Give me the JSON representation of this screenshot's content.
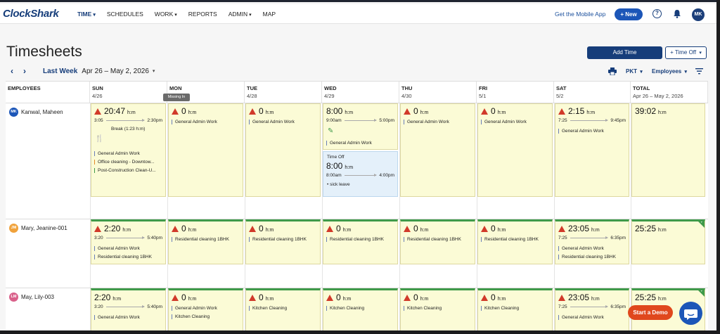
{
  "app": {
    "logo": "ClockShark"
  },
  "nav": [
    {
      "label": "TIME",
      "caret": true,
      "active": true
    },
    {
      "label": "SCHEDULES",
      "caret": false
    },
    {
      "label": "WORK",
      "caret": true
    },
    {
      "label": "REPORTS",
      "caret": false
    },
    {
      "label": "ADMIN",
      "caret": true
    },
    {
      "label": "MAP",
      "caret": false
    }
  ],
  "topbar": {
    "mobile_link": "Get the Mobile App",
    "new_label": "+ New",
    "help": "?",
    "user_initials": "MK"
  },
  "page": {
    "title": "Timesheets",
    "add_time": "Add Time",
    "time_off": "+ Time Off"
  },
  "week": {
    "label": "Last Week",
    "range": "Apr 26 – May 2, 2026",
    "tz": "PKT",
    "employees_filter": "Employees"
  },
  "columns": [
    {
      "day": "EMPLOYEES",
      "date": ""
    },
    {
      "day": "SUN",
      "date": "4/26"
    },
    {
      "day": "MON",
      "date": "4/27"
    },
    {
      "day": "TUE",
      "date": "4/28"
    },
    {
      "day": "WED",
      "date": "4/29"
    },
    {
      "day": "THU",
      "date": "4/30"
    },
    {
      "day": "FRI",
      "date": "5/1"
    },
    {
      "day": "SAT",
      "date": "5/2"
    },
    {
      "day": "TOTAL",
      "date": "Apr 26 – May 2, 2026"
    }
  ],
  "tooltip": "Missing In",
  "unit": "h:m",
  "employees": [
    {
      "initials": "MK",
      "name": "Kanwal, Maheen",
      "color": "#1c56b8",
      "approved": false,
      "days": [
        {
          "hours": "20:47",
          "warn": true,
          "start": "3:05",
          "end": "2:30pm",
          "break": "Break (1:23 h:m)",
          "tags": [
            "General Admin Work",
            "Office cleaning - Downtow...",
            "Post-Construction Clean-U..."
          ]
        },
        {
          "hours": "0",
          "warn": true,
          "tags": [
            "General Admin Work"
          ]
        },
        {
          "hours": "0",
          "warn": true,
          "tags": [
            "General Admin Work"
          ]
        },
        {
          "hours": "8:00",
          "warn": false,
          "start": "9:00am",
          "end": "5:00pm",
          "tags": [
            "General Admin Work"
          ],
          "timeoff": {
            "label": "Time Off",
            "hours": "8:00",
            "start": "8:00am",
            "end": "4:00pm",
            "note": "• sick leave"
          }
        },
        {
          "hours": "0",
          "warn": true,
          "tags": [
            "General Admin Work"
          ]
        },
        {
          "hours": "0",
          "warn": true,
          "tags": [
            "General Admin Work"
          ]
        },
        {
          "hours": "2:15",
          "warn": true,
          "start": "7:25",
          "end": "9:45pm",
          "tags": [
            "General Admin Work"
          ]
        }
      ],
      "total": "39:02"
    },
    {
      "initials": "JM",
      "name": "Mary, Jeanine-001",
      "color": "#f0a23b",
      "approved": true,
      "days": [
        {
          "hours": "2:20",
          "warn": true,
          "start": "3:20",
          "end": "5:40pm",
          "tags": [
            "General Admin Work",
            "Residential cleaning 1BHK"
          ]
        },
        {
          "hours": "0",
          "warn": true,
          "tags": [
            "Residential cleaning 1BHK"
          ]
        },
        {
          "hours": "0",
          "warn": true,
          "tags": [
            "Residential cleaning 1BHK"
          ]
        },
        {
          "hours": "0",
          "warn": true,
          "tags": [
            "Residential cleaning 1BHK"
          ]
        },
        {
          "hours": "0",
          "warn": true,
          "tags": [
            "Residential cleaning 1BHK"
          ]
        },
        {
          "hours": "0",
          "warn": true,
          "tags": [
            "Residential cleaning 1BHK"
          ]
        },
        {
          "hours": "23:05",
          "warn": true,
          "start": "7:25",
          "end": "6:35pm",
          "tags": [
            "General Admin Work",
            "Residential cleaning 1BHK"
          ]
        }
      ],
      "total": "25:25"
    },
    {
      "initials": "LM",
      "name": "May, Lily-003",
      "color": "#d9608a",
      "approved": true,
      "days": [
        {
          "hours": "2:20",
          "warn": false,
          "start": "3:20",
          "end": "5:40pm",
          "tags": [
            "General Admin Work"
          ]
        },
        {
          "hours": "0",
          "warn": true,
          "tags": [
            "General Admin Work",
            "Kitchen Cleaning"
          ]
        },
        {
          "hours": "0",
          "warn": true,
          "tags": [
            "Kitchen Cleaning"
          ]
        },
        {
          "hours": "0",
          "warn": true,
          "tags": [
            "Kitchen Cleaning"
          ]
        },
        {
          "hours": "0",
          "warn": true,
          "tags": [
            "Kitchen Cleaning"
          ]
        },
        {
          "hours": "0",
          "warn": true,
          "tags": [
            "Kitchen Cleaning"
          ]
        },
        {
          "hours": "23:05",
          "warn": true,
          "start": "7:25",
          "end": "6:35pm",
          "tags": [
            "General Admin Work"
          ]
        }
      ],
      "total": "25:25"
    }
  ],
  "demo_label": "Start a Demo"
}
